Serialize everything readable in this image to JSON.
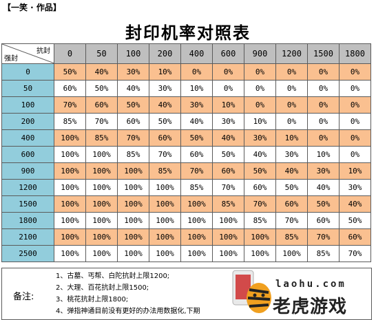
{
  "header": {
    "author": "【一笑 · 作品】",
    "title": "封印机率对照表"
  },
  "table": {
    "corner_top": "抗封",
    "corner_bottom": "强封",
    "columns": [
      "0",
      "50",
      "100",
      "200",
      "400",
      "600",
      "900",
      "1200",
      "1500",
      "1800"
    ],
    "rows": [
      {
        "label": "0",
        "values": [
          "50%",
          "40%",
          "30%",
          "10%",
          "0%",
          "0%",
          "0%",
          "0%",
          "0%",
          "0%"
        ]
      },
      {
        "label": "50",
        "values": [
          "60%",
          "50%",
          "40%",
          "30%",
          "10%",
          "0%",
          "0%",
          "0%",
          "0%",
          "0%"
        ]
      },
      {
        "label": "100",
        "values": [
          "70%",
          "60%",
          "50%",
          "40%",
          "30%",
          "10%",
          "0%",
          "0%",
          "0%",
          "0%"
        ]
      },
      {
        "label": "200",
        "values": [
          "85%",
          "70%",
          "60%",
          "50%",
          "40%",
          "30%",
          "10%",
          "0%",
          "0%",
          "0%"
        ]
      },
      {
        "label": "400",
        "values": [
          "100%",
          "85%",
          "70%",
          "60%",
          "50%",
          "40%",
          "30%",
          "10%",
          "0%",
          "0%"
        ]
      },
      {
        "label": "600",
        "values": [
          "100%",
          "100%",
          "85%",
          "70%",
          "60%",
          "50%",
          "40%",
          "30%",
          "10%",
          "0%"
        ]
      },
      {
        "label": "900",
        "values": [
          "100%",
          "100%",
          "100%",
          "85%",
          "70%",
          "60%",
          "50%",
          "40%",
          "30%",
          "10%"
        ]
      },
      {
        "label": "1200",
        "values": [
          "100%",
          "100%",
          "100%",
          "100%",
          "85%",
          "70%",
          "60%",
          "50%",
          "40%",
          "30%"
        ]
      },
      {
        "label": "1500",
        "values": [
          "100%",
          "100%",
          "100%",
          "100%",
          "100%",
          "85%",
          "70%",
          "60%",
          "50%",
          "40%"
        ]
      },
      {
        "label": "1800",
        "values": [
          "100%",
          "100%",
          "100%",
          "100%",
          "100%",
          "100%",
          "85%",
          "70%",
          "60%",
          "50%"
        ]
      },
      {
        "label": "2100",
        "values": [
          "100%",
          "100%",
          "100%",
          "100%",
          "100%",
          "100%",
          "100%",
          "85%",
          "70%",
          "60%"
        ]
      },
      {
        "label": "2500",
        "values": [
          "100%",
          "100%",
          "100%",
          "100%",
          "100%",
          "100%",
          "100%",
          "100%",
          "85%",
          "70%"
        ]
      }
    ]
  },
  "notes": {
    "label": "备注:",
    "items": [
      "1、古墓、丐帮、白陀抗封上限1200;",
      "2、大理、百花抗封上限1500;",
      "3、桃花抗封上限1800;",
      "4、弹指神通目前没有更好的办法用数据化,下期"
    ]
  },
  "watermark": {
    "url": "laohu.com",
    "brand": "老虎游戏"
  },
  "colors": {
    "peach": "#fac090",
    "row_header": "#92cddc",
    "column_header": "#bfbfbf"
  }
}
